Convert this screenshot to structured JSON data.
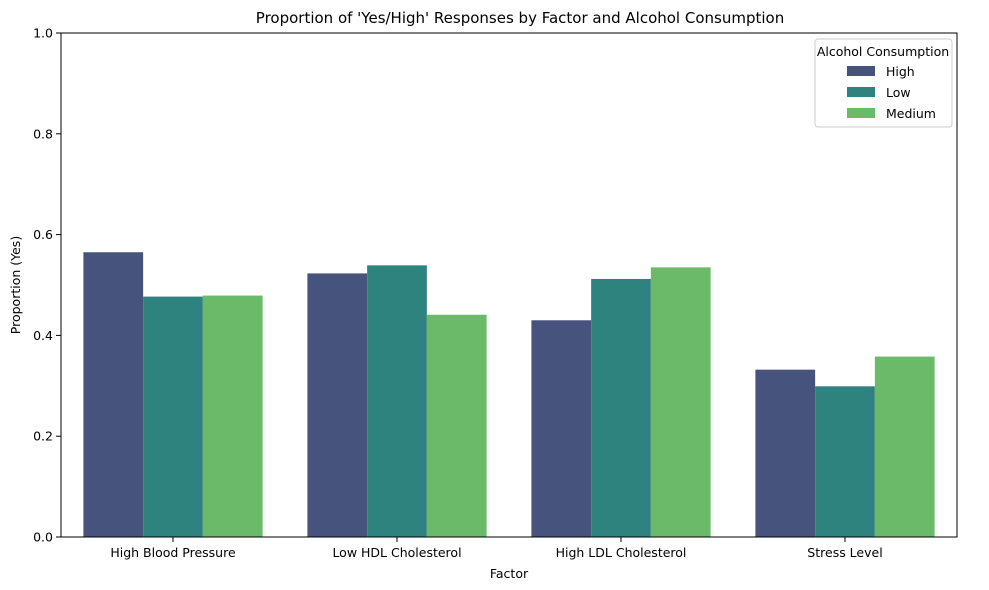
{
  "chart_data": {
    "type": "bar",
    "title": "Proportion of 'Yes/High' Responses by Factor and Alcohol Consumption",
    "xlabel": "Factor",
    "ylabel": "Proportion (Yes)",
    "ylim": [
      0,
      1.0
    ],
    "yticks": [
      "0.0",
      "0.2",
      "0.4",
      "0.6",
      "0.8",
      "1.0"
    ],
    "categories": [
      "High Blood Pressure",
      "Low HDL Cholesterol",
      "High LDL Cholesterol",
      "Stress Level"
    ],
    "legend": {
      "title": "Alcohol Consumption",
      "placement": "top-right"
    },
    "series": [
      {
        "name": "High",
        "color": "#46537d",
        "values": [
          0.565,
          0.523,
          0.43,
          0.332
        ]
      },
      {
        "name": "Low",
        "color": "#2f837e",
        "values": [
          0.477,
          0.539,
          0.512,
          0.299
        ]
      },
      {
        "name": "Medium",
        "color": "#6aba6a",
        "values": [
          0.479,
          0.441,
          0.535,
          0.358
        ]
      }
    ],
    "grid": false
  }
}
